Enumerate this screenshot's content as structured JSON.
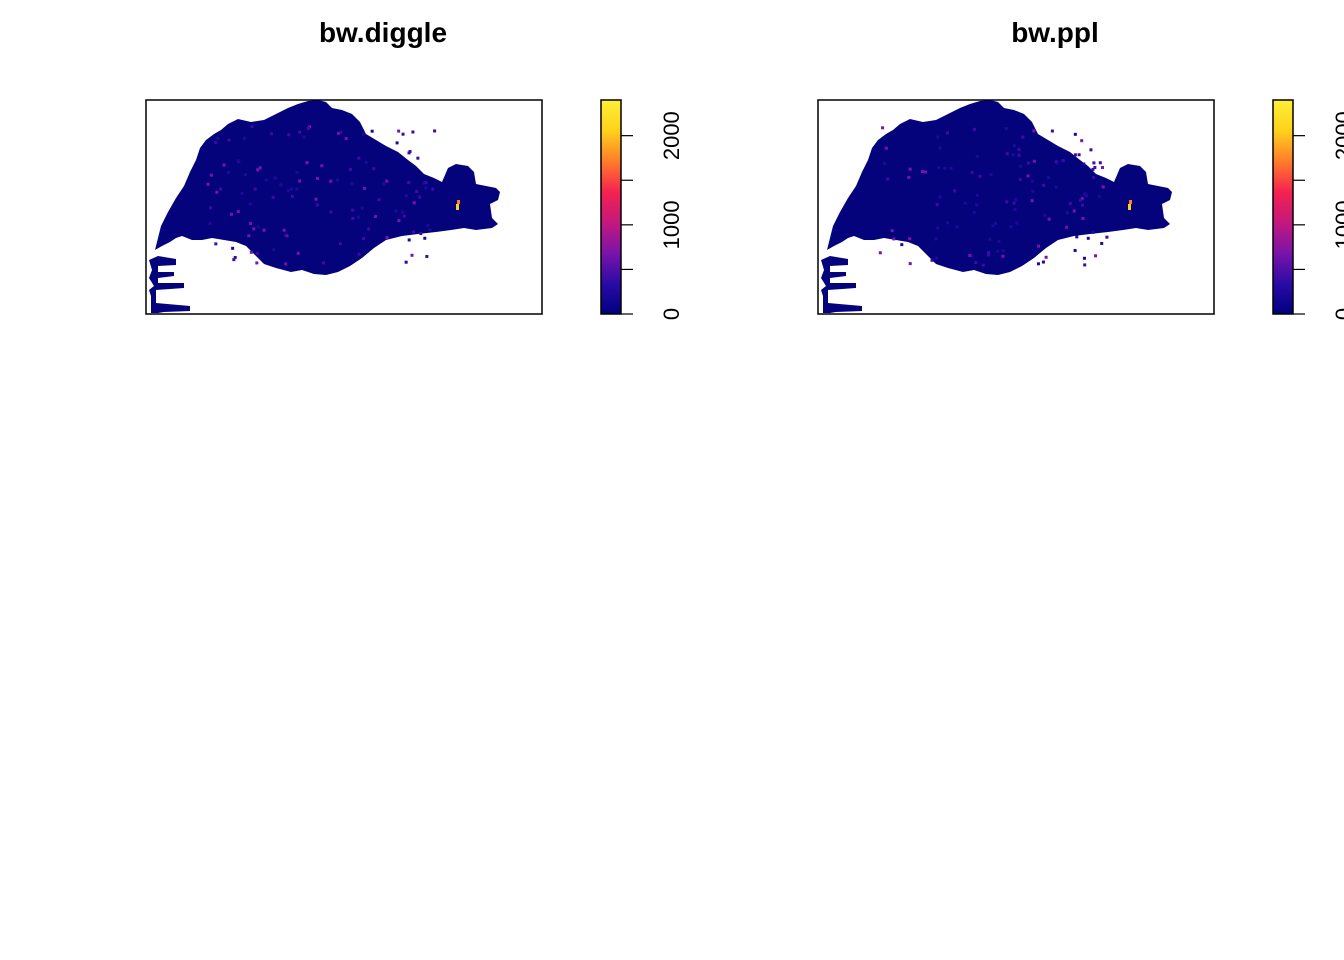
{
  "chart_data": [
    {
      "type": "heatmap",
      "title": "bw.diggle",
      "xlabel": "",
      "ylabel": "",
      "colorbar": {
        "range": [
          0,
          2400
        ],
        "ticks": [
          0,
          500,
          1000,
          1500,
          2000
        ],
        "tick_labels": [
          "0",
          "",
          "1000",
          "",
          "2000"
        ],
        "colors": [
          "#00007f",
          "#2b0ba6",
          "#7a14a8",
          "#c4197c",
          "#f5224f",
          "#ff7d2a",
          "#ffd21a",
          "#ffee38"
        ]
      }
    },
    {
      "type": "heatmap",
      "title": "bw.ppl",
      "xlabel": "",
      "ylabel": "",
      "colorbar": {
        "range": [
          0,
          2400
        ],
        "ticks": [
          0,
          500,
          1000,
          1500,
          2000
        ],
        "tick_labels": [
          "0",
          "",
          "1000",
          "",
          "2000"
        ],
        "colors": [
          "#00007f",
          "#2b0ba6",
          "#7a14a8",
          "#c4197c",
          "#f5224f",
          "#ff7d2a",
          "#ffd21a",
          "#ffee38"
        ]
      }
    }
  ]
}
